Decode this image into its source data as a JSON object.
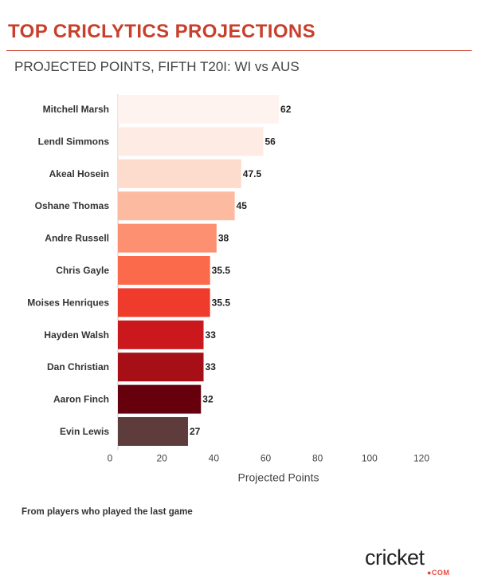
{
  "header": {
    "title": "TOP CRICLYTICS PROJECTIONS",
    "accent_color": "#c8402c"
  },
  "chart_data": {
    "type": "bar",
    "orientation": "horizontal",
    "title": "PROJECTED POINTS, FIFTH T20I: WI vs AUS",
    "xlabel": "Projected Points",
    "ylabel": "",
    "xlim": [
      0,
      120
    ],
    "xticks": [
      "0",
      "20",
      "40",
      "60",
      "80",
      "100",
      "120"
    ],
    "grid": false,
    "data_labels": true,
    "categories": [
      "Mitchell Marsh",
      "Lendl Simmons",
      "Akeal Hosein",
      "Oshane Thomas",
      "Andre Russell",
      "Chris Gayle",
      "Moises Henriques",
      "Hayden Walsh",
      "Dan Christian",
      "Aaron Finch",
      "Evin Lewis"
    ],
    "values": [
      62,
      56,
      47.5,
      45,
      38,
      35.5,
      35.5,
      33,
      33,
      32,
      27
    ],
    "value_labels": [
      "62",
      "56",
      "47.5",
      "45",
      "38",
      "35.5",
      "35.5",
      "33",
      "33",
      "32",
      "27"
    ],
    "colors": [
      "#fff3ef",
      "#feebe3",
      "#fddccd",
      "#fcbba1",
      "#fc9070",
      "#fb6a4a",
      "#ef3b2c",
      "#cb181d",
      "#a50f15",
      "#67000d",
      "#5e3c3c"
    ]
  },
  "footer": {
    "note": "From players who played the last game",
    "logo_text": "cricket",
    "logo_suffix": "●COM"
  }
}
